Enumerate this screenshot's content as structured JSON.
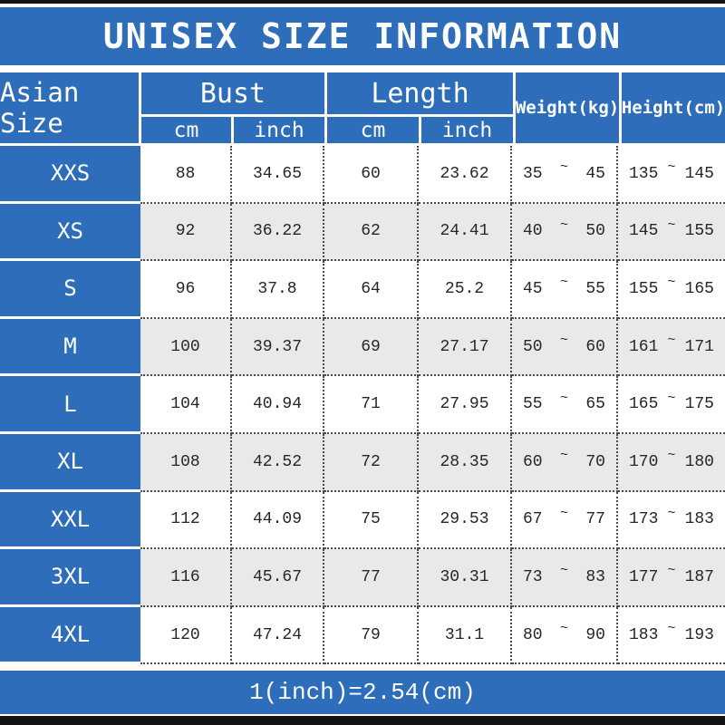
{
  "chart_data": {
    "type": "table",
    "title": "UNISEX SIZE INFORMATION",
    "footer_note": "1(inch)=2.54(cm)",
    "header": {
      "size_col": "Asian Size",
      "bust": "Bust",
      "length": "Length",
      "unit_cm": "cm",
      "unit_inch": "inch",
      "weight": "Weight(kg)",
      "height": "Height(cm)",
      "range_separator": "~"
    },
    "rows": [
      {
        "size": "XXS",
        "bust_cm": "88",
        "bust_inch": "34.65",
        "length_cm": "60",
        "length_inch": "23.62",
        "weight_min": "35",
        "weight_max": "45",
        "height_min": "135",
        "height_max": "145"
      },
      {
        "size": "XS",
        "bust_cm": "92",
        "bust_inch": "36.22",
        "length_cm": "62",
        "length_inch": "24.41",
        "weight_min": "40",
        "weight_max": "50",
        "height_min": "145",
        "height_max": "155"
      },
      {
        "size": "S",
        "bust_cm": "96",
        "bust_inch": "37.8",
        "length_cm": "64",
        "length_inch": "25.2",
        "weight_min": "45",
        "weight_max": "55",
        "height_min": "155",
        "height_max": "165"
      },
      {
        "size": "M",
        "bust_cm": "100",
        "bust_inch": "39.37",
        "length_cm": "69",
        "length_inch": "27.17",
        "weight_min": "50",
        "weight_max": "60",
        "height_min": "161",
        "height_max": "171"
      },
      {
        "size": "L",
        "bust_cm": "104",
        "bust_inch": "40.94",
        "length_cm": "71",
        "length_inch": "27.95",
        "weight_min": "55",
        "weight_max": "65",
        "height_min": "165",
        "height_max": "175"
      },
      {
        "size": "XL",
        "bust_cm": "108",
        "bust_inch": "42.52",
        "length_cm": "72",
        "length_inch": "28.35",
        "weight_min": "60",
        "weight_max": "70",
        "height_min": "170",
        "height_max": "180"
      },
      {
        "size": "XXL",
        "bust_cm": "112",
        "bust_inch": "44.09",
        "length_cm": "75",
        "length_inch": "29.53",
        "weight_min": "67",
        "weight_max": "77",
        "height_min": "173",
        "height_max": "183"
      },
      {
        "size": "3XL",
        "bust_cm": "116",
        "bust_inch": "45.67",
        "length_cm": "77",
        "length_inch": "30.31",
        "weight_min": "73",
        "weight_max": "83",
        "height_min": "177",
        "height_max": "187"
      },
      {
        "size": "4XL",
        "bust_cm": "120",
        "bust_inch": "47.24",
        "length_cm": "79",
        "length_inch": "31.1",
        "weight_min": "80",
        "weight_max": "90",
        "height_min": "183",
        "height_max": "193"
      }
    ],
    "colors": {
      "header_blue": "#2d6db9",
      "row_alt_gray": "#e9e9e9",
      "text_dark": "#262626",
      "border_black": "#131313",
      "white": "#ffffff"
    },
    "layout": {
      "grid": "dotted",
      "legend_position": "none"
    }
  }
}
